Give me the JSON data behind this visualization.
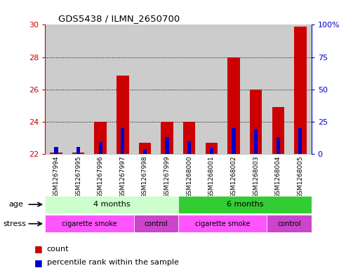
{
  "title": "GDS5438 / ILMN_2650700",
  "samples": [
    "GSM1267994",
    "GSM1267995",
    "GSM1267996",
    "GSM1267997",
    "GSM1267998",
    "GSM1267999",
    "GSM1268000",
    "GSM1268001",
    "GSM1268002",
    "GSM1268003",
    "GSM1268004",
    "GSM1268005"
  ],
  "count_values": [
    22.1,
    22.1,
    24.0,
    26.85,
    22.7,
    24.0,
    24.0,
    22.7,
    28.0,
    26.0,
    24.9,
    29.9
  ],
  "percentile_values": [
    5.5,
    5.5,
    9,
    20,
    4,
    13,
    10,
    5,
    20,
    19,
    13,
    20
  ],
  "count_base": 22.0,
  "ylim_left": [
    22,
    30
  ],
  "ylim_right": [
    0,
    100
  ],
  "yticks_left": [
    22,
    24,
    26,
    28,
    30
  ],
  "yticks_right": [
    0,
    25,
    50,
    75,
    100
  ],
  "bar_color": "#cc0000",
  "percentile_color": "#0000cc",
  "age_groups": [
    {
      "label": "4 months",
      "start": 0,
      "end": 6,
      "color": "#ccffcc"
    },
    {
      "label": "6 months",
      "start": 6,
      "end": 12,
      "color": "#33cc33"
    }
  ],
  "stress_groups": [
    {
      "label": "cigarette smoke",
      "start": 0,
      "end": 4,
      "color": "#ff55ff"
    },
    {
      "label": "control",
      "start": 4,
      "end": 6,
      "color": "#cc44cc"
    },
    {
      "label": "cigarette smoke",
      "start": 6,
      "end": 10,
      "color": "#ff55ff"
    },
    {
      "label": "control",
      "start": 10,
      "end": 12,
      "color": "#cc44cc"
    }
  ],
  "bar_color_legend": "#cc0000",
  "percentile_color_legend": "#0000cc",
  "tick_color_left": "#cc0000",
  "tick_color_right": "#0000cc",
  "column_bg": "#cccccc",
  "plot_bg": "#ffffff"
}
